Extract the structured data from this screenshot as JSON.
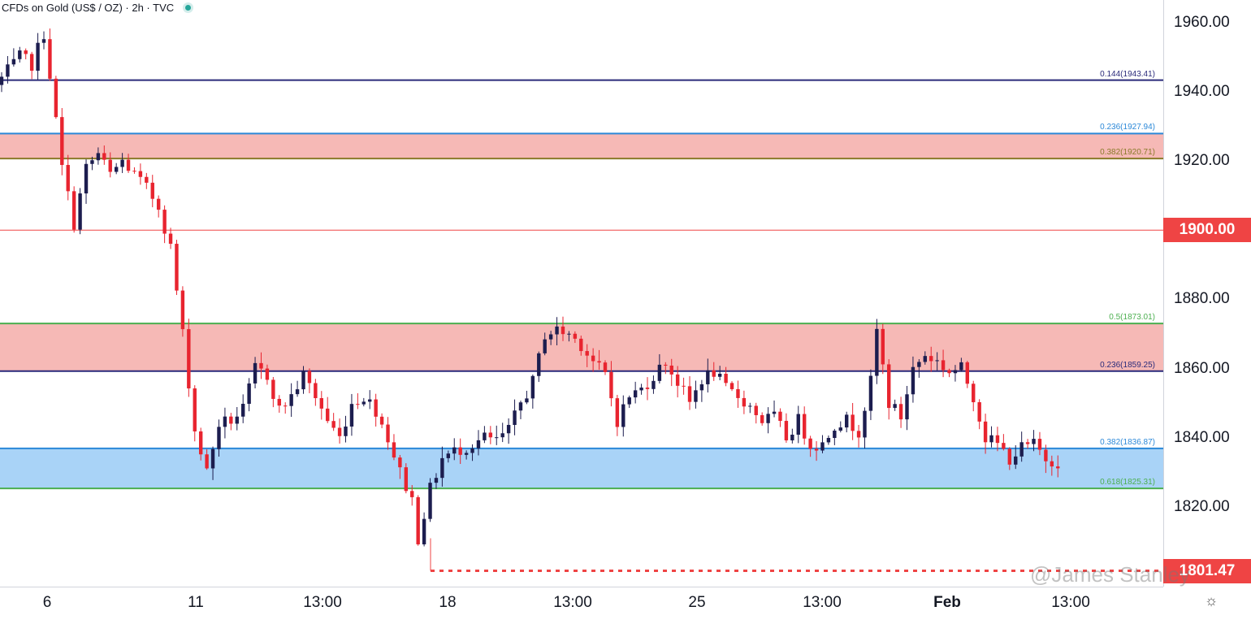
{
  "header": {
    "title": "CFDs on Gold (US$ / OZ) · 2h · TVC"
  },
  "price_axis": {
    "ticks": [
      "1960.00",
      "1940.00",
      "1920.00",
      "1880.00",
      "1860.00",
      "1840.00",
      "1820.00"
    ],
    "badges": [
      {
        "label": "1900.00",
        "value": 1900.0
      },
      {
        "label": "1801.47",
        "value": 1801.47
      }
    ]
  },
  "time_axis": {
    "ticks": [
      {
        "label": "6",
        "bold": false
      },
      {
        "label": "11",
        "bold": false
      },
      {
        "label": "13:00",
        "bold": false
      },
      {
        "label": "18",
        "bold": false
      },
      {
        "label": "13:00",
        "bold": false
      },
      {
        "label": "25",
        "bold": false
      },
      {
        "label": "13:00",
        "bold": false
      },
      {
        "label": "Feb",
        "bold": true
      },
      {
        "label": "13:00",
        "bold": false
      }
    ]
  },
  "watermark": "@James Stanley",
  "colors": {
    "up": "#1c1d4f",
    "down": "#e8242f",
    "navy_line": "#2a2a7a",
    "blue_line": "#2b88d8",
    "green_line": "#4caf50",
    "red_zone": "#f3a29d",
    "blue_zone": "#8cc4f4",
    "badge": "#ef4444"
  },
  "chart_data": {
    "type": "candlestick",
    "title": "CFDs on Gold (US$ / OZ)",
    "timeframe": "2h",
    "source": "TVC",
    "ylim": [
      1800,
      1968
    ],
    "fib_levels": [
      {
        "label": "0.144(1943.41)",
        "value": 1943.41,
        "color": "#2a2a7a"
      },
      {
        "label": "0.236(1927.94)",
        "value": 1927.94,
        "color": "#2b88d8"
      },
      {
        "label": "0.382(1920.71)",
        "value": 1920.71,
        "color": "#8a7a2a"
      },
      {
        "label": "0.5(1873.01)",
        "value": 1873.01,
        "color": "#4caf50"
      },
      {
        "label": "0.236(1859.25)",
        "value": 1859.25,
        "color": "#2a2a7a"
      },
      {
        "label": "0.382(1836.87)",
        "value": 1836.87,
        "color": "#2b88d8"
      },
      {
        "label": "0.618(1825.31)",
        "value": 1825.31,
        "color": "#4caf50"
      }
    ],
    "horizontal_lines": [
      {
        "value": 1900.0,
        "style": "solid",
        "color": "#ef4444"
      },
      {
        "value": 1801.47,
        "style": "dotted",
        "color": "#ef4444"
      }
    ],
    "zones": [
      {
        "from": 1920.71,
        "to": 1927.94,
        "color": "#f3a29d"
      },
      {
        "from": 1859.25,
        "to": 1873.01,
        "color": "#f3a29d"
      },
      {
        "from": 1825.31,
        "to": 1836.87,
        "color": "#8cc4f4"
      }
    ],
    "close_path": [
      [
        0,
        1944
      ],
      [
        3,
        1950
      ],
      [
        5,
        1948
      ],
      [
        7,
        1957
      ],
      [
        8,
        1945
      ],
      [
        10,
        1918
      ],
      [
        12,
        1902
      ],
      [
        14,
        1918
      ],
      [
        16,
        1922
      ],
      [
        18,
        1916
      ],
      [
        20,
        1920
      ],
      [
        22,
        1916
      ],
      [
        24,
        1912
      ],
      [
        26,
        1907
      ],
      [
        28,
        1895
      ],
      [
        30,
        1870
      ],
      [
        32,
        1842
      ],
      [
        34,
        1830
      ],
      [
        36,
        1844
      ],
      [
        38,
        1845
      ],
      [
        40,
        1848
      ],
      [
        42,
        1860
      ],
      [
        44,
        1858
      ],
      [
        46,
        1848
      ],
      [
        48,
        1852
      ],
      [
        50,
        1858
      ],
      [
        52,
        1852
      ],
      [
        54,
        1845
      ],
      [
        56,
        1840
      ],
      [
        58,
        1850
      ],
      [
        60,
        1852
      ],
      [
        62,
        1848
      ],
      [
        64,
        1840
      ],
      [
        66,
        1830
      ],
      [
        68,
        1822
      ],
      [
        69,
        1811
      ],
      [
        71,
        1825
      ],
      [
        73,
        1834
      ],
      [
        75,
        1836
      ],
      [
        78,
        1838
      ],
      [
        80,
        1840
      ],
      [
        82,
        1839
      ],
      [
        84,
        1842
      ],
      [
        86,
        1850
      ],
      [
        88,
        1856
      ],
      [
        90,
        1870
      ],
      [
        92,
        1871
      ],
      [
        94,
        1870
      ],
      [
        96,
        1867
      ],
      [
        98,
        1862
      ],
      [
        100,
        1858
      ],
      [
        102,
        1845
      ],
      [
        104,
        1852
      ],
      [
        106,
        1854
      ],
      [
        108,
        1858
      ],
      [
        110,
        1862
      ],
      [
        112,
        1856
      ],
      [
        114,
        1850
      ],
      [
        116,
        1857
      ],
      [
        118,
        1859
      ],
      [
        120,
        1854
      ],
      [
        122,
        1852
      ],
      [
        124,
        1849
      ],
      [
        126,
        1845
      ],
      [
        128,
        1846
      ],
      [
        130,
        1840
      ],
      [
        132,
        1845
      ],
      [
        134,
        1838
      ],
      [
        136,
        1838
      ],
      [
        138,
        1844
      ],
      [
        140,
        1845
      ],
      [
        142,
        1842
      ],
      [
        144,
        1856
      ],
      [
        145,
        1871
      ],
      [
        147,
        1850
      ],
      [
        149,
        1846
      ],
      [
        151,
        1860
      ],
      [
        153,
        1864
      ],
      [
        155,
        1862
      ],
      [
        157,
        1859
      ],
      [
        159,
        1860
      ],
      [
        161,
        1852
      ],
      [
        163,
        1840
      ],
      [
        165,
        1838
      ],
      [
        167,
        1834
      ],
      [
        169,
        1837
      ],
      [
        171,
        1838
      ],
      [
        173,
        1834
      ],
      [
        175,
        1833
      ]
    ]
  }
}
